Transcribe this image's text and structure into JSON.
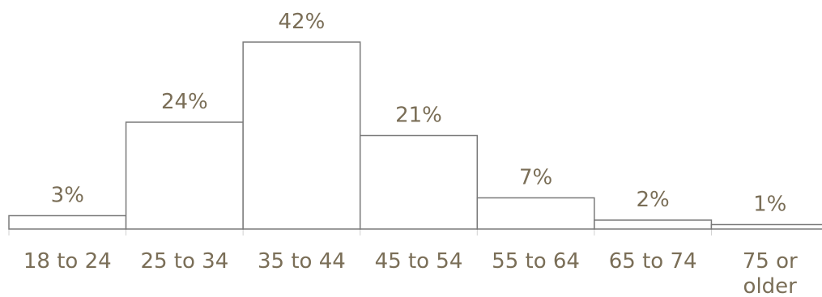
{
  "chart_data": {
    "type": "bar",
    "title": "",
    "xlabel": "",
    "ylabel": "",
    "categories": [
      [
        "18 to 24"
      ],
      [
        "25 to 34"
      ],
      [
        "35 to 44"
      ],
      [
        "45 to 54"
      ],
      [
        "55 to 64"
      ],
      [
        "65 to 74"
      ],
      [
        "75 or",
        "older"
      ]
    ],
    "values": [
      3,
      24,
      42,
      21,
      7,
      2,
      1
    ],
    "value_labels": [
      "3%",
      "24%",
      "42%",
      "21%",
      "7%",
      "2%",
      "1%"
    ],
    "ylim": [
      0,
      42
    ],
    "grid": false,
    "legend": "none",
    "colors": {
      "bar_fill": "#ffffff",
      "bar_stroke": "#7a7a7a",
      "text": "#7a6e57",
      "axis": "#d0d0d0"
    }
  }
}
